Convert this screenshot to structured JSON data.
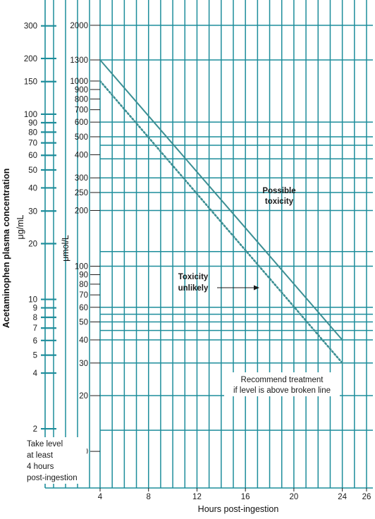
{
  "chart_data": {
    "type": "line",
    "title": "",
    "xlabel": "Hours post-ingestion",
    "ylabel": "Acetaminophen plasma concentration",
    "ylabel_left_unit": "μg/mL",
    "ylabel_right_unit": "μmol/L",
    "x_ticks": [
      "4",
      "8",
      "12",
      "16",
      "20",
      "24",
      "26"
    ],
    "xlim": [
      4,
      26
    ],
    "ylim_ug_per_ml": [
      1.6,
      400
    ],
    "ylim_umol_per_l": [
      10,
      2000
    ],
    "y_scale": "log",
    "grid": true,
    "y_ticks_ug_per_ml": [
      "300",
      "200",
      "150",
      "100",
      "90",
      "80",
      "70",
      "60",
      "50",
      "40",
      "30",
      "20",
      "10",
      "9",
      "8",
      "7",
      "6",
      "5",
      "4",
      "2"
    ],
    "y_ticks_umol_per_l": [
      "2000",
      "1300",
      "1000",
      "900",
      "800",
      "700",
      "600",
      "500",
      "400",
      "300",
      "250",
      "200",
      "100",
      "90",
      "80",
      "70",
      "60",
      "50",
      "40",
      "30",
      "20",
      "10"
    ],
    "series": [
      {
        "name": "",
        "style": "solid",
        "x": [
          4,
          24
        ],
        "y_umol_per_l": [
          1300,
          40
        ]
      },
      {
        "name": "",
        "style": "dotted",
        "x": [
          4,
          24
        ],
        "y_umol_per_l": [
          1000,
          30
        ]
      }
    ],
    "annotations": {
      "possible_toxicity": "Possible toxicity",
      "toxicity_unlikely": "Toxicity unlikely",
      "recommend_treatment": "Recommend treatment if level is above broken line",
      "take_level": "Take level at least 4 hours post-ingestion"
    },
    "colors": {
      "grid": "#1d8d9b",
      "line": "#3c8f93",
      "text": "#1a1a1a"
    }
  }
}
